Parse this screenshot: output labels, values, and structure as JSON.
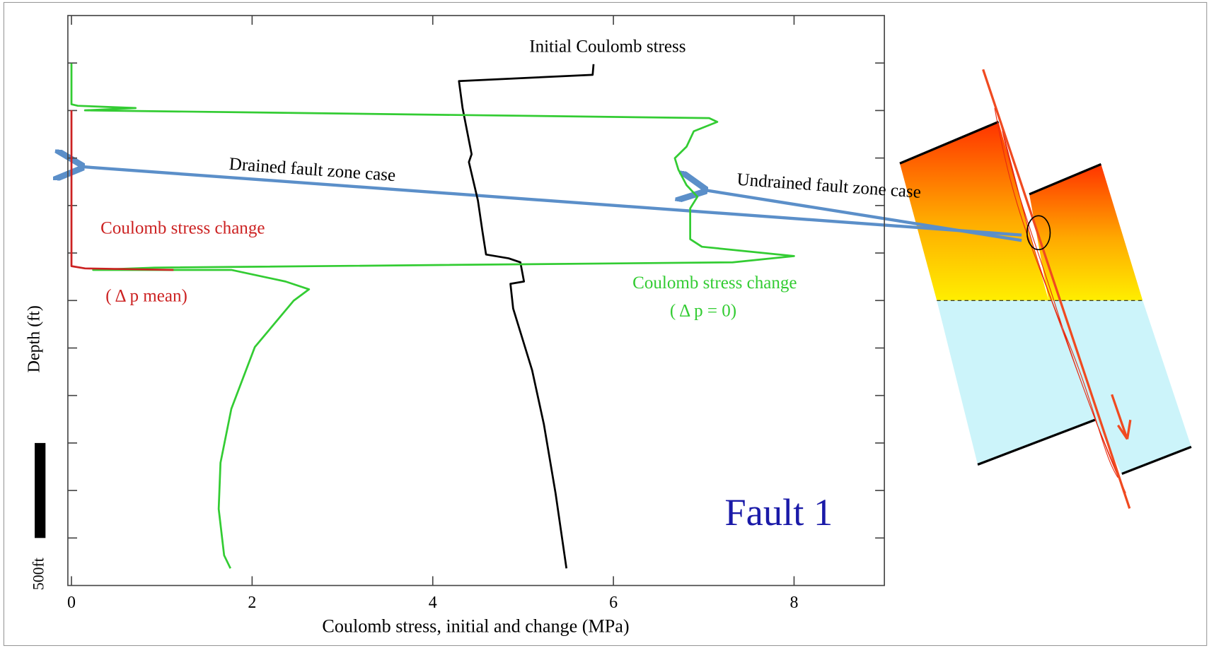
{
  "chart_data": {
    "type": "line",
    "xlabel": "Coulomb stress, initial and change (MPa)",
    "ylabel": "Depth (ft)",
    "xlim": [
      -0.04,
      9
    ],
    "xticks": [
      0,
      2,
      4,
      6,
      8
    ],
    "ylim": [
      3000,
      0
    ],
    "yticks": [
      250,
      500,
      750,
      1000,
      1250,
      1500,
      1750,
      2000,
      2250,
      2500,
      2750
    ],
    "scale_bar": {
      "label": "500ft",
      "length": 500
    },
    "series": [
      {
        "name": "Initial Coulomb stress",
        "color": "#000000",
        "values": [
          5.78,
          5.77,
          4.29,
          4.33,
          4.43,
          4.4,
          4.46,
          4.5,
          4.55,
          4.59,
          4.84,
          4.97,
          5.01,
          4.86,
          4.89,
          5.1,
          5.23,
          5.36,
          5.48
        ],
        "depth": [
          256,
          312,
          345,
          487,
          730,
          771,
          893,
          974,
          1136,
          1258,
          1278,
          1299,
          1400,
          1412,
          1542,
          1867,
          2151,
          2516,
          2910
        ]
      },
      {
        "name": "Coulomb stress change",
        "condition": "( Δ p = 0)",
        "color": "#33cc33",
        "values": [
          0,
          0,
          0.07,
          0.71,
          0.15,
          7.06,
          7.15,
          6.89,
          6.81,
          6.68,
          6.72,
          6.81,
          6.93,
          6.85,
          6.85,
          6.98,
          8.0,
          7.32,
          0.92,
          0.24,
          1.77,
          2.37,
          2.63,
          2.46,
          2.03,
          1.77,
          1.65,
          1.63,
          1.69,
          1.76
        ],
        "depth": [
          252,
          467,
          475,
          487,
          499,
          540,
          560,
          609,
          690,
          751,
          812,
          893,
          954,
          1015,
          1177,
          1217,
          1266,
          1299,
          1327,
          1339,
          1339,
          1400,
          1441,
          1501,
          1745,
          2070,
          2354,
          2597,
          2841,
          2910
        ]
      },
      {
        "name": "Coulomb stress change",
        "condition": "( Δ p mean)",
        "color": "#cc2222",
        "values": [
          0,
          0,
          0.15,
          1.13
        ],
        "depth": [
          499,
          1319,
          1331,
          1339
        ]
      }
    ],
    "annotations": {
      "drained": "Drained fault zone case",
      "undrained": "Undrained fault zone case",
      "fault": "Fault 1"
    }
  }
}
